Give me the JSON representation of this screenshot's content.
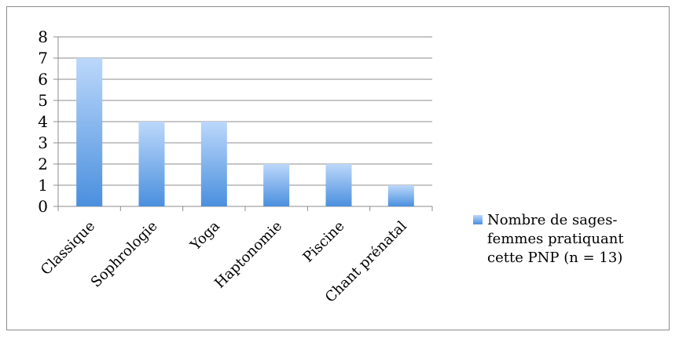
{
  "chart_data": {
    "type": "bar",
    "categories": [
      "Classique",
      "Sophrologie",
      "Yoga",
      "Haptonomie",
      "Piscine",
      "Chant prénatal"
    ],
    "series": [
      {
        "name": "Nombre de sages-femmes pratiquant cette PNP (n = 13)",
        "values": [
          7,
          4,
          4,
          2,
          2,
          1
        ]
      }
    ],
    "ylim": [
      0,
      8
    ],
    "yticks": [
      0,
      1,
      2,
      3,
      4,
      5,
      6,
      7,
      8
    ],
    "grid": true,
    "legend_position": "right",
    "legend_lines": [
      "Nombre de sages-",
      "femmes pratiquant",
      "cette PNP (n = 13)"
    ],
    "bar_color_top": "#bcd8fb",
    "bar_color_bottom": "#4a8fde",
    "xlabel": "",
    "ylabel": "",
    "title": ""
  }
}
